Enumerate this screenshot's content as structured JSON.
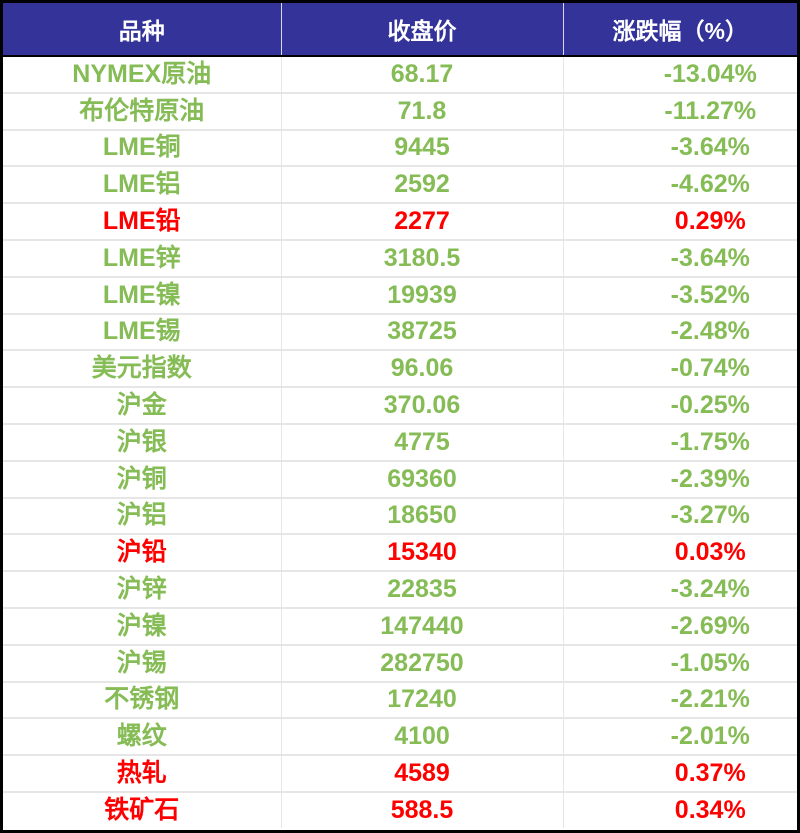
{
  "table": {
    "header_bg": "#333399",
    "colors": {
      "down": "#86bc56",
      "up": "#ff0000"
    },
    "columns": [
      "品种",
      "收盘价",
      "涨跌幅（%）"
    ],
    "rows": [
      {
        "name": "NYMEX原油",
        "close": "68.17",
        "change": "-13.04%",
        "trend": "down"
      },
      {
        "name": "布伦特原油",
        "close": "71.8",
        "change": "-11.27%",
        "trend": "down"
      },
      {
        "name": "LME铜",
        "close": "9445",
        "change": "-3.64%",
        "trend": "down"
      },
      {
        "name": "LME铝",
        "close": "2592",
        "change": "-4.62%",
        "trend": "down"
      },
      {
        "name": "LME铅",
        "close": "2277",
        "change": "0.29%",
        "trend": "up"
      },
      {
        "name": "LME锌",
        "close": "3180.5",
        "change": "-3.64%",
        "trend": "down"
      },
      {
        "name": "LME镍",
        "close": "19939",
        "change": "-3.52%",
        "trend": "down"
      },
      {
        "name": "LME锡",
        "close": "38725",
        "change": "-2.48%",
        "trend": "down"
      },
      {
        "name": "美元指数",
        "close": "96.06",
        "change": "-0.74%",
        "trend": "down"
      },
      {
        "name": "沪金",
        "close": "370.06",
        "change": "-0.25%",
        "trend": "down"
      },
      {
        "name": "沪银",
        "close": "4775",
        "change": "-1.75%",
        "trend": "down"
      },
      {
        "name": "沪铜",
        "close": "69360",
        "change": "-2.39%",
        "trend": "down"
      },
      {
        "name": "沪铝",
        "close": "18650",
        "change": "-3.27%",
        "trend": "down"
      },
      {
        "name": "沪铅",
        "close": "15340",
        "change": "0.03%",
        "trend": "up"
      },
      {
        "name": "沪锌",
        "close": "22835",
        "change": "-3.24%",
        "trend": "down"
      },
      {
        "name": "沪镍",
        "close": "147440",
        "change": "-2.69%",
        "trend": "down"
      },
      {
        "name": "沪锡",
        "close": "282750",
        "change": "-1.05%",
        "trend": "down"
      },
      {
        "name": "不锈钢",
        "close": "17240",
        "change": "-2.21%",
        "trend": "down"
      },
      {
        "name": "螺纹",
        "close": "4100",
        "change": "-2.01%",
        "trend": "down"
      },
      {
        "name": "热轧",
        "close": "4589",
        "change": "0.37%",
        "trend": "up"
      },
      {
        "name": "铁矿石",
        "close": "588.5",
        "change": "0.34%",
        "trend": "up"
      }
    ]
  }
}
